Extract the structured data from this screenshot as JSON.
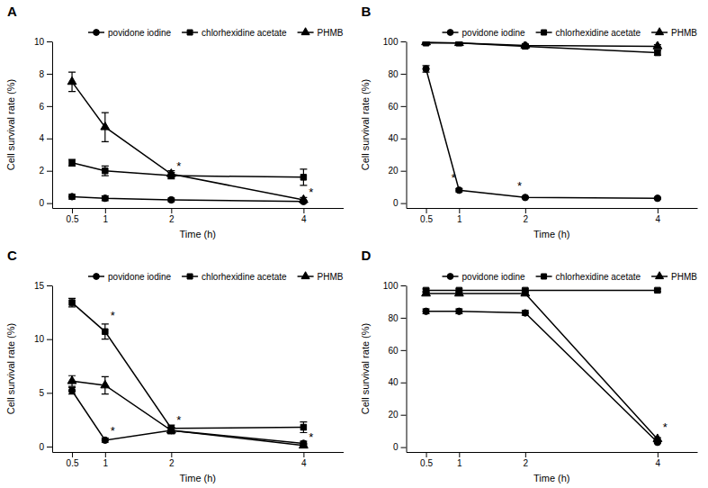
{
  "chart_data": [
    {
      "type": "line",
      "title": "A",
      "xlabel": "Time (h)",
      "ylabel": "Cell survival rate (%)",
      "x": [
        0.5,
        1,
        2,
        4
      ],
      "xlim": [
        0.2,
        4.6
      ],
      "xticks": [
        0.5,
        1,
        2,
        4
      ],
      "ylim": [
        -0.3,
        10
      ],
      "yticks": [
        0,
        2,
        4,
        6,
        8,
        10
      ],
      "color": "#000000",
      "grid": false,
      "legend": "top",
      "series": [
        {
          "name": "povidone iodine",
          "marker": "circle",
          "values": [
            0.4,
            0.3,
            0.2,
            0.1
          ],
          "errors": [
            0.15,
            0.15,
            0.1,
            0.08
          ]
        },
        {
          "name": "chlorhexidine acetate",
          "marker": "square",
          "values": [
            2.5,
            2.0,
            1.7,
            1.6
          ],
          "errors": [
            0.2,
            0.3,
            0.2,
            0.5
          ]
        },
        {
          "name": "PHMB",
          "marker": "triangle",
          "values": [
            7.5,
            4.7,
            1.8,
            0.2
          ],
          "errors": [
            0.6,
            0.9,
            0.2,
            0.15
          ]
        }
      ],
      "annotations": [
        {
          "x": 2.08,
          "y": 2.05,
          "text": "*"
        },
        {
          "x": 4.08,
          "y": 0.45,
          "text": "*"
        }
      ]
    },
    {
      "type": "line",
      "title": "B",
      "xlabel": "Time (h)",
      "ylabel": "Cell survival rate (%)",
      "x": [
        0.5,
        1,
        2,
        4
      ],
      "xlim": [
        0.2,
        4.6
      ],
      "xticks": [
        0.5,
        1,
        2,
        4
      ],
      "ylim": [
        -3,
        100
      ],
      "yticks": [
        0,
        20,
        40,
        60,
        80,
        100
      ],
      "color": "#000000",
      "grid": false,
      "legend": "top",
      "series": [
        {
          "name": "povidone iodine",
          "marker": "circle",
          "values": [
            83,
            8,
            3.5,
            3
          ],
          "errors": [
            2,
            1,
            0.5,
            0.5
          ]
        },
        {
          "name": "chlorhexidine acetate",
          "marker": "square",
          "values": [
            99,
            99,
            97,
            93
          ],
          "errors": [
            0.5,
            0.5,
            1,
            1.5
          ]
        },
        {
          "name": "PHMB",
          "marker": "triangle",
          "values": [
            99.5,
            99,
            97.5,
            97
          ],
          "errors": [
            0.5,
            0.5,
            0.8,
            1
          ]
        }
      ],
      "annotations": [
        {
          "x": 0.88,
          "y": 13,
          "text": "*"
        },
        {
          "x": 1.88,
          "y": 8,
          "text": "*"
        }
      ]
    },
    {
      "type": "line",
      "title": "C",
      "xlabel": "Time (h)",
      "ylabel": "Cell survival rate (%)",
      "x": [
        0.5,
        1,
        2,
        4
      ],
      "xlim": [
        0.2,
        4.6
      ],
      "xticks": [
        0.5,
        1,
        2,
        4
      ],
      "ylim": [
        -0.5,
        15
      ],
      "yticks": [
        0,
        5,
        10,
        15
      ],
      "color": "#000000",
      "grid": false,
      "legend": "top",
      "series": [
        {
          "name": "povidone iodine",
          "marker": "circle",
          "values": [
            5.2,
            0.6,
            1.5,
            0.3
          ],
          "errors": [
            0.3,
            0.2,
            0.3,
            0.2
          ]
        },
        {
          "name": "chlorhexidine acetate",
          "marker": "square",
          "values": [
            13.4,
            10.7,
            1.7,
            1.8
          ],
          "errors": [
            0.4,
            0.7,
            0.3,
            0.5
          ]
        },
        {
          "name": "PHMB",
          "marker": "triangle",
          "values": [
            6.1,
            5.7,
            1.5,
            0.1
          ],
          "errors": [
            0.5,
            0.8,
            0.3,
            0.1
          ]
        }
      ],
      "annotations": [
        {
          "x": 1.08,
          "y": 11.8,
          "text": "*"
        },
        {
          "x": 1.08,
          "y": 1.1,
          "text": "*"
        },
        {
          "x": 2.08,
          "y": 2.1,
          "text": "*"
        },
        {
          "x": 4.08,
          "y": 0.5,
          "text": "*"
        }
      ]
    },
    {
      "type": "line",
      "title": "D",
      "xlabel": "Time (h)",
      "ylabel": "Cell survival rate (%)",
      "x": [
        0.5,
        1,
        2,
        4
      ],
      "xlim": [
        0.2,
        4.6
      ],
      "xticks": [
        0.5,
        1,
        2,
        4
      ],
      "ylim": [
        -3,
        100
      ],
      "yticks": [
        0,
        20,
        40,
        60,
        80,
        100
      ],
      "color": "#000000",
      "grid": false,
      "legend": "top",
      "series": [
        {
          "name": "povidone iodine",
          "marker": "circle",
          "values": [
            84,
            84,
            83,
            3
          ],
          "errors": [
            1.5,
            1.5,
            1.5,
            0.5
          ]
        },
        {
          "name": "chlorhexidine acetate",
          "marker": "square",
          "values": [
            97,
            97,
            97,
            97
          ],
          "errors": [
            0.8,
            0.8,
            0.8,
            0.8
          ]
        },
        {
          "name": "PHMB",
          "marker": "triangle",
          "values": [
            95,
            95,
            95,
            5
          ],
          "errors": [
            0.8,
            0.8,
            0.8,
            0.8
          ]
        }
      ],
      "annotations": [
        {
          "x": 4.08,
          "y": 10,
          "text": "*"
        }
      ]
    }
  ]
}
